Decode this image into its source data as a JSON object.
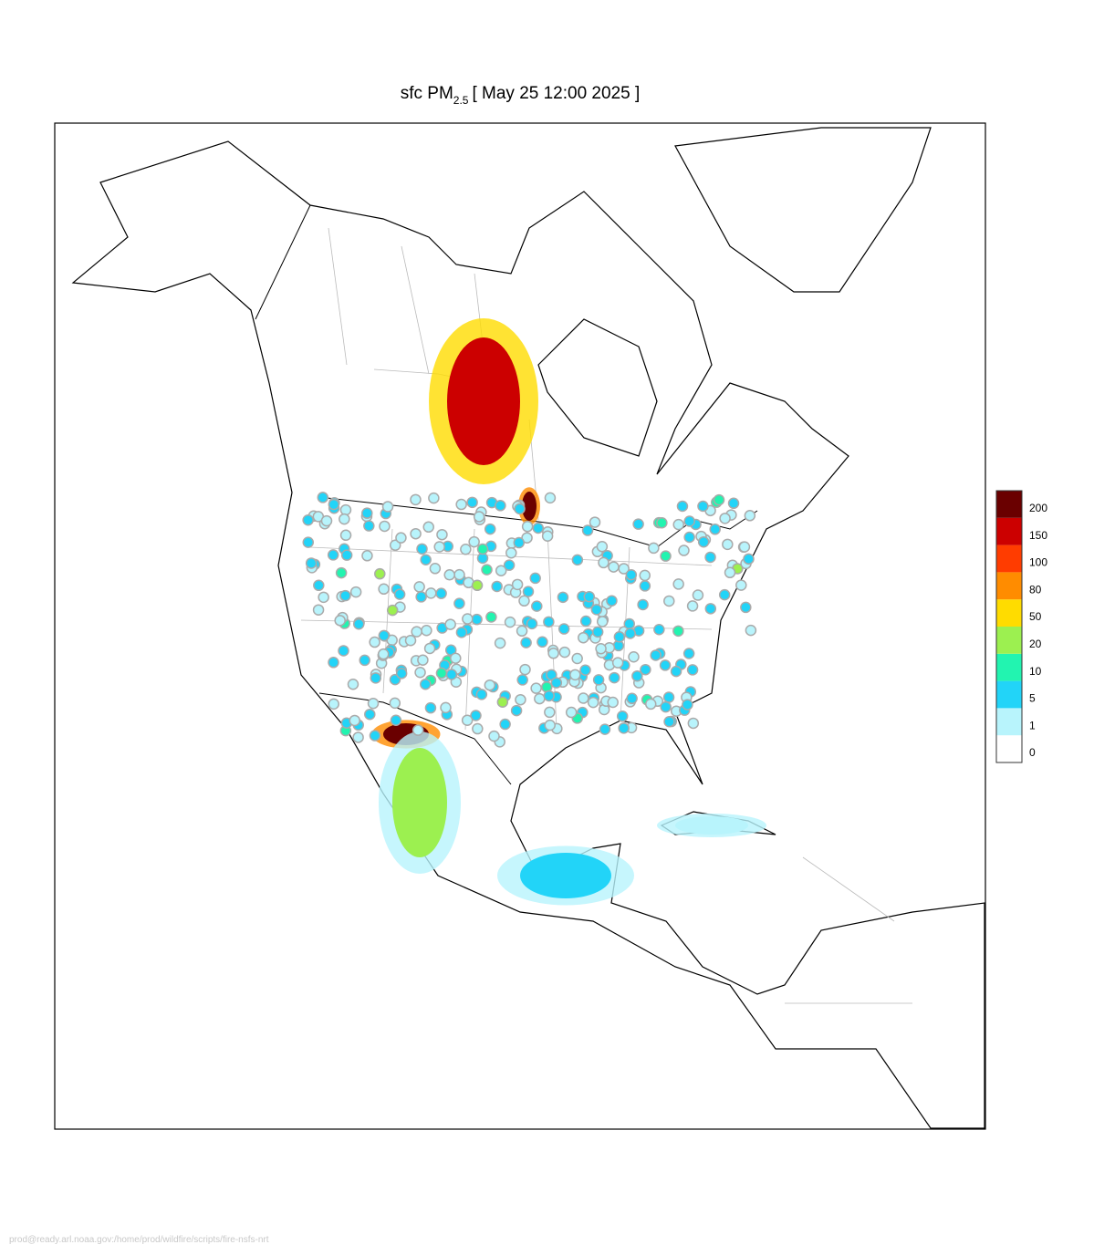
{
  "title": {
    "main": "sfc PM",
    "subscript": "2.5",
    "time": "[ May 25 12:00 2025 ]"
  },
  "legend": {
    "levels": [
      0,
      1,
      5,
      10,
      20,
      50,
      80,
      100,
      150,
      200
    ],
    "colors": [
      "#ffffff",
      "#b8f4fc",
      "#22d4f8",
      "#22f4b0",
      "#9cf050",
      "#ffdc00",
      "#ff8c00",
      "#ff3c00",
      "#cc0000",
      "#6a0000"
    ]
  },
  "footer": "prod@ready.arl.noaa.gov:/home/prod/wildfire/scripts/fire-nsfs-nrt"
}
